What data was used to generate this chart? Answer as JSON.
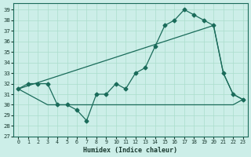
{
  "xlabel": "Humidex (Indice chaleur)",
  "bg_color": "#cceee8",
  "grid_color": "#aaddcc",
  "line_color": "#1a6b5a",
  "xlim": [
    -0.5,
    23.5
  ],
  "ylim": [
    27,
    39.6
  ],
  "yticks": [
    27,
    28,
    29,
    30,
    31,
    32,
    33,
    34,
    35,
    36,
    37,
    38,
    39
  ],
  "xticks": [
    0,
    1,
    2,
    3,
    4,
    5,
    6,
    7,
    8,
    9,
    10,
    11,
    12,
    13,
    14,
    15,
    16,
    17,
    18,
    19,
    20,
    21,
    22,
    23
  ],
  "line_main_x": [
    0,
    1,
    2,
    3,
    4,
    5,
    6,
    7,
    8,
    9,
    10,
    11,
    12,
    13,
    14,
    15,
    16,
    17,
    18,
    19,
    20,
    21,
    22,
    23
  ],
  "line_main_y": [
    31.5,
    32.0,
    32.0,
    32.0,
    30.0,
    30.0,
    29.5,
    28.5,
    31.0,
    31.0,
    32.0,
    31.5,
    33.0,
    33.5,
    35.5,
    37.5,
    38.0,
    39.0,
    38.5,
    38.0,
    37.5,
    33.0,
    31.0,
    30.5
  ],
  "line_upper_x": [
    0,
    20,
    21,
    22,
    23
  ],
  "line_upper_y": [
    31.5,
    37.5,
    33.0,
    31.0,
    30.5
  ],
  "line_lower_x": [
    0,
    3,
    10,
    20,
    22,
    23
  ],
  "line_lower_y": [
    31.5,
    30.0,
    30.0,
    30.0,
    30.0,
    30.5
  ]
}
